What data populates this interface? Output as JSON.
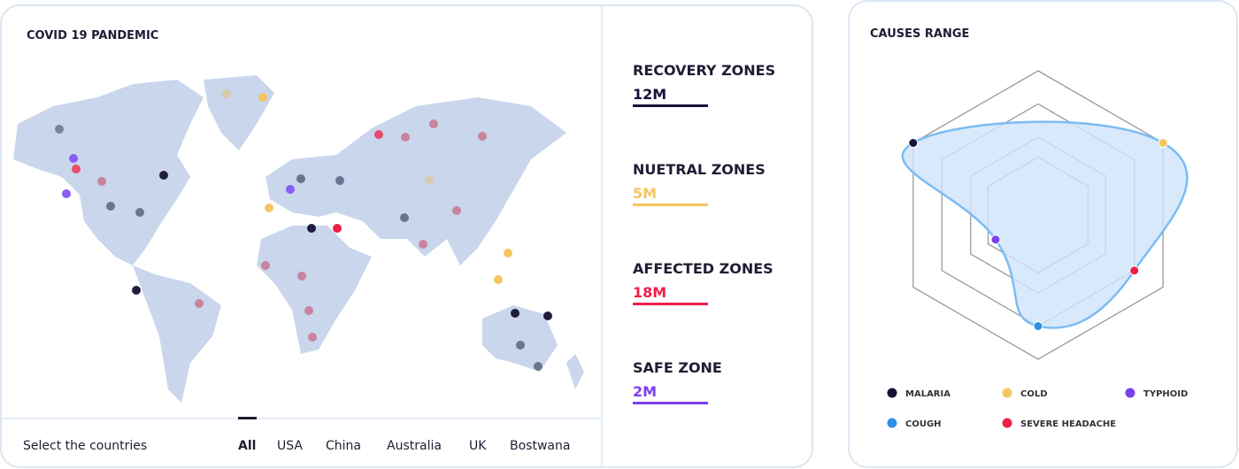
{
  "map_panel": {
    "title": "COVID 19 PANDEMIC"
  },
  "zones": [
    {
      "label": "RECOVERY ZONES",
      "value": "12M",
      "color": "#14123a"
    },
    {
      "label": "NUETRAL ZONES",
      "value": "5M",
      "color": "#f6c560"
    },
    {
      "label": "AFFECTED ZONES",
      "value": "18M",
      "color": "#ee1f4a"
    },
    {
      "label": "SAFE ZONE",
      "value": "2M",
      "color": "#7a40ec"
    }
  ],
  "filter": {
    "label": "Select the countries",
    "options": [
      "All",
      "USA",
      "China",
      "Australia",
      "UK",
      "Bostwana"
    ],
    "selected": 0
  },
  "chart_data": {
    "type": "radar",
    "title": "CAUSES RANGE",
    "categories": [
      null,
      "COLD",
      "SEVERE HEADACHE",
      "COUGH",
      "TYPHOID",
      "MALARIA"
    ],
    "values": [
      null,
      100,
      77,
      77,
      34,
      100
    ],
    "colors": [
      null,
      "#f6c560",
      "#ee1f4a",
      "#2d8fe6",
      "#7a40ec",
      "#14123a"
    ],
    "rlim": [
      0,
      100
    ],
    "rticks": [
      40,
      54,
      77,
      100
    ]
  }
}
